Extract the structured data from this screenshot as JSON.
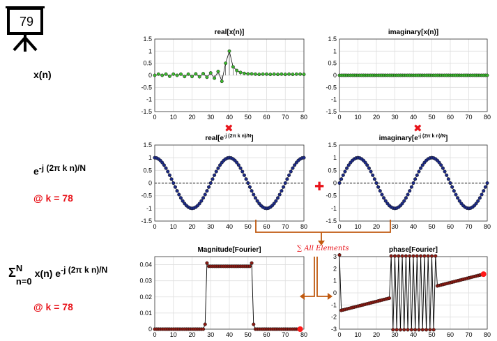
{
  "slide": {
    "number": "79"
  },
  "rows": {
    "signal_label": "x(n)",
    "kernel_label": {
      "base": "e",
      "exponent": "-j (2π k n)/N",
      "k_note": "@ k = 78"
    },
    "sum_label": {
      "sigma": "Σ",
      "upper": "N",
      "lower": "n=0",
      "term_base": "x(n) e",
      "term_exponent": "-j (2π k n)/N",
      "k_note": "@ k = 78"
    }
  },
  "operators": {
    "multiply": "✖",
    "plus": "✚"
  },
  "annotation": {
    "text": "∑ All Elements"
  },
  "colors": {
    "accent_red": "#e8141b",
    "arrow_orange": "#c05a10",
    "green_marker": "#3cb82e",
    "blue_marker": "#1c2a86",
    "red_marker": "#8a1a12"
  },
  "chart_data": [
    {
      "type": "line",
      "title": "real[x(n)]",
      "xlim": [
        0,
        80
      ],
      "ylim": [
        -1.5,
        1.5
      ],
      "xticks": [
        "0",
        "10",
        "20",
        "30",
        "40",
        "50",
        "60",
        "70",
        "80"
      ],
      "yticks": [
        "-1.5",
        "-1",
        "-0.5",
        "0",
        "0.5",
        "1",
        "1.5"
      ],
      "grid": true,
      "marker_color": "#3cb82e",
      "series": [
        {
          "x": [
            0,
            2,
            4,
            6,
            8,
            10,
            12,
            14,
            16,
            18,
            20,
            22,
            24,
            26,
            28,
            30,
            32,
            34,
            36,
            38,
            40,
            42,
            44,
            46,
            48,
            50,
            52,
            54,
            56,
            58,
            60,
            62,
            64,
            66,
            68,
            70,
            72,
            74,
            76,
            78,
            80
          ],
          "y": [
            0,
            0.05,
            0,
            0.05,
            -0.04,
            0.05,
            0,
            0.05,
            -0.05,
            0.05,
            -0.05,
            0.06,
            -0.06,
            0.07,
            -0.08,
            0.1,
            -0.12,
            0.16,
            -0.25,
            0.5,
            1,
            0.35,
            0.2,
            0.12,
            0.08,
            0.06,
            0.06,
            0.05,
            0.04,
            0.05,
            0.05,
            0.04,
            0.05,
            0.04,
            0.05,
            0.04,
            0.05,
            0.04,
            0.05,
            0.05,
            0.04
          ]
        }
      ]
    },
    {
      "type": "line",
      "title": "imaginary[x(n)]",
      "xlim": [
        0,
        80
      ],
      "ylim": [
        -1.5,
        1.5
      ],
      "xticks": [
        "0",
        "10",
        "20",
        "30",
        "40",
        "50",
        "60",
        "70",
        "80"
      ],
      "yticks": [
        "-1.5",
        "-1",
        "-0.5",
        "0",
        "0.5",
        "1",
        "1.5"
      ],
      "grid": true,
      "marker_color": "#3cb82e",
      "series": [
        {
          "x_start": 0,
          "x_end": 80,
          "x_step": 1,
          "constant": 0
        }
      ]
    },
    {
      "type": "line",
      "title_base": "real[e",
      "title_exponent": "-j (2π k n)/N",
      "title_close": "]",
      "xlim": [
        0,
        80
      ],
      "ylim": [
        -1.5,
        1.5
      ],
      "xticks": [
        "0",
        "10",
        "20",
        "30",
        "40",
        "50",
        "60",
        "70",
        "80"
      ],
      "yticks": [
        "-1.5",
        "-1",
        "-0.5",
        "0",
        "0.5",
        "1",
        "1.5"
      ],
      "grid": true,
      "zero_line": "dashed",
      "marker_color": "#1c2a86",
      "series": [
        {
          "function": "cos",
          "amplitude": 1,
          "period": 40,
          "phase": 0,
          "x_start": 0,
          "x_end": 80,
          "x_step": 1
        }
      ]
    },
    {
      "type": "line",
      "title_base": "imaginary[e",
      "title_exponent": "-j (2π k n)/N",
      "title_close": "]",
      "xlim": [
        0,
        80
      ],
      "ylim": [
        -1.5,
        1.5
      ],
      "xticks": [
        "0",
        "10",
        "20",
        "30",
        "40",
        "50",
        "60",
        "70",
        "80"
      ],
      "yticks": [
        "-1.5",
        "-1",
        "-0.5",
        "0",
        "0.5",
        "1",
        "1.5"
      ],
      "grid": true,
      "zero_line": "dashed",
      "marker_color": "#1c2a86",
      "series": [
        {
          "function": "sin",
          "amplitude": 1,
          "period": 40,
          "phase": 0,
          "x_start": 0,
          "x_end": 80,
          "x_step": 1
        }
      ]
    },
    {
      "type": "line",
      "title": "Magnitude[Fourier]",
      "xlim": [
        0,
        80
      ],
      "ylim": [
        0,
        0.045
      ],
      "xticks": [
        "0",
        "10",
        "20",
        "30",
        "40",
        "50",
        "60",
        "70",
        "80"
      ],
      "yticks": [
        "0",
        "0.01",
        "0.02",
        "0.03",
        "0.04"
      ],
      "grid": true,
      "marker_color": "#8a1a12",
      "current_k": 78,
      "series": [
        {
          "x_start": 0,
          "x_end": 78,
          "x_step": 1,
          "segments": [
            {
              "from": 0,
              "to": 26,
              "value": 0
            },
            {
              "at": 27,
              "value": 0.003
            },
            {
              "from": 28,
              "to": 52,
              "value": 0.039,
              "edges": 0.041
            },
            {
              "at": 53,
              "value": 0.003
            },
            {
              "from": 54,
              "to": 78,
              "value": 0
            }
          ]
        }
      ]
    },
    {
      "type": "line",
      "title": "phase[Fourier]",
      "xlim": [
        0,
        80
      ],
      "ylim": [
        -3,
        3
      ],
      "xticks": [
        "0",
        "10",
        "20",
        "30",
        "40",
        "50",
        "60",
        "70",
        "80"
      ],
      "yticks": [
        "-3",
        "-2",
        "-1",
        "0",
        "1",
        "2",
        "3"
      ],
      "grid": true,
      "marker_color": "#8a1a12",
      "current_k": 78,
      "series": [
        {
          "x_start": 0,
          "x_end": 78,
          "x_step": 1,
          "first_point": 3.14,
          "ramp": {
            "from_x": 1,
            "from_y": -1.45,
            "to_x": 78,
            "to_y": 1.55
          },
          "alternating_region": {
            "from": 28,
            "to": 52,
            "high": 3.05,
            "low": -3.05
          }
        }
      ]
    }
  ]
}
